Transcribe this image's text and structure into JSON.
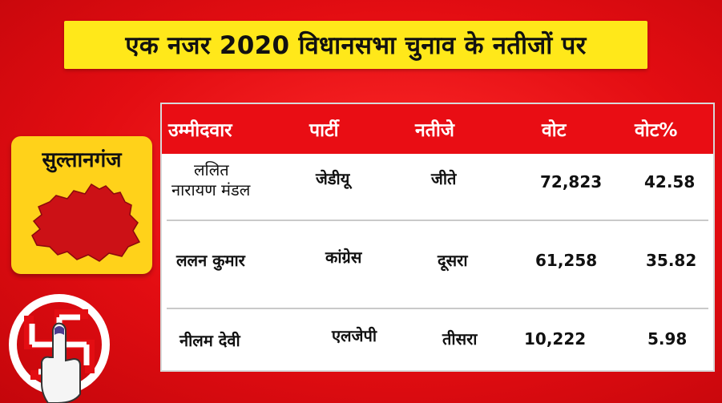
{
  "header": {
    "title": "एक नजर 2020 विधानसभा चुनाव के नतीजों पर"
  },
  "constituency": {
    "name": "सुल्तानगंज"
  },
  "table": {
    "columns": [
      "उम्मीदवार",
      "पार्टी",
      "नतीजे",
      "वोट",
      "वोट%"
    ],
    "rows": [
      {
        "candidate_line1": "ललित",
        "candidate_line2": "नारायण मंडल",
        "party": "जेडीयू",
        "result": "जीते",
        "votes": "72,823",
        "vote_pct": "42.58"
      },
      {
        "candidate_line1": "ललन कुमार",
        "candidate_line2": "",
        "party": "कांग्रेस",
        "result": "दूसरा",
        "votes": "61,258",
        "vote_pct": "35.82"
      },
      {
        "candidate_line1": "नीलम देवी",
        "candidate_line2": "",
        "party": "एलजेपी",
        "result": "तीसरा",
        "votes": "10,222",
        "vote_pct": "5.98"
      }
    ]
  },
  "colors": {
    "background_red": "#e30d12",
    "header_yellow": "#ffe81a",
    "badge_yellow": "#ffd21a",
    "map_red": "#cc1116"
  },
  "icons": [
    "bihar-district-map-icon",
    "voting-finger-swastika-icon"
  ]
}
